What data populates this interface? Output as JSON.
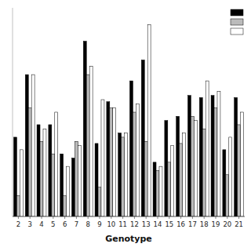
{
  "chart_data": {
    "type": "bar",
    "x_label": "Genotype",
    "categories": [
      "2",
      "3",
      "4",
      "5",
      "6",
      "7",
      "8",
      "9",
      "10",
      "11",
      "12",
      "13",
      "14",
      "15",
      "16",
      "17",
      "18",
      "19",
      "20",
      "21"
    ],
    "series": [
      {
        "color": "#000000",
        "values": [
          0.38,
          0.68,
          0.44,
          0.44,
          0.3,
          0.28,
          0.84,
          0.35,
          0.55,
          0.4,
          0.65,
          0.75,
          0.26,
          0.46,
          0.48,
          0.58,
          0.57,
          0.58,
          0.32,
          0.57
        ]
      },
      {
        "color": "#bbbbbb",
        "values": [
          0.1,
          0.52,
          0.36,
          0.3,
          0.1,
          0.36,
          0.68,
          0.14,
          0.52,
          0.38,
          0.5,
          0.36,
          0.22,
          0.26,
          0.35,
          0.48,
          0.42,
          0.52,
          0.2,
          0.44
        ]
      },
      {
        "color": "#ffffff",
        "values": [
          0.32,
          0.68,
          0.42,
          0.5,
          0.24,
          0.34,
          0.72,
          0.56,
          0.52,
          0.4,
          0.54,
          0.92,
          0.24,
          0.34,
          0.4,
          0.46,
          0.65,
          0.6,
          0.38,
          0.5
        ]
      }
    ],
    "ylim": [
      0,
      1.0
    ],
    "yticks": [],
    "tick_labels": "x",
    "grid": false,
    "legend": "upper right"
  }
}
